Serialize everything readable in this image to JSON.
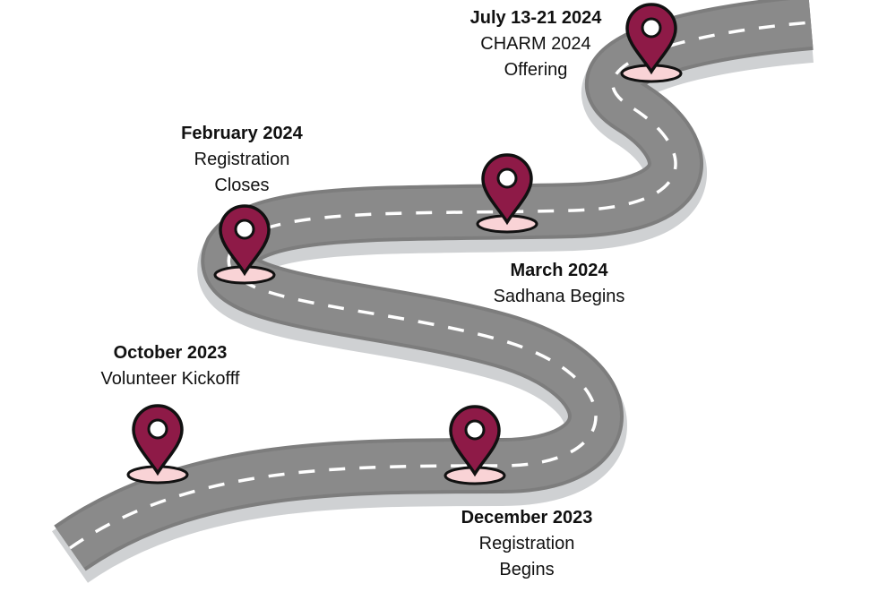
{
  "milestones": [
    {
      "date": "October 2023",
      "lines": [
        "Volunteer Kickofff"
      ]
    },
    {
      "date": "December 2023",
      "lines": [
        "Registration",
        "Begins"
      ]
    },
    {
      "date": "February 2024",
      "lines": [
        "Registration",
        "Closes"
      ]
    },
    {
      "date": "March 2024",
      "lines": [
        "Sadhana Begins"
      ]
    },
    {
      "date": "July 13-21 2024",
      "lines": [
        "CHARM 2024",
        "Offering"
      ]
    }
  ],
  "colors": {
    "pin": "#8e1a47",
    "pin_outline": "#111111",
    "pin_base": "#f9d3d6",
    "road": "#7d7d7d",
    "road_edge": "#d2d4d6",
    "road_dash": "#ffffff"
  },
  "icons": [
    "map-pin-icon"
  ]
}
